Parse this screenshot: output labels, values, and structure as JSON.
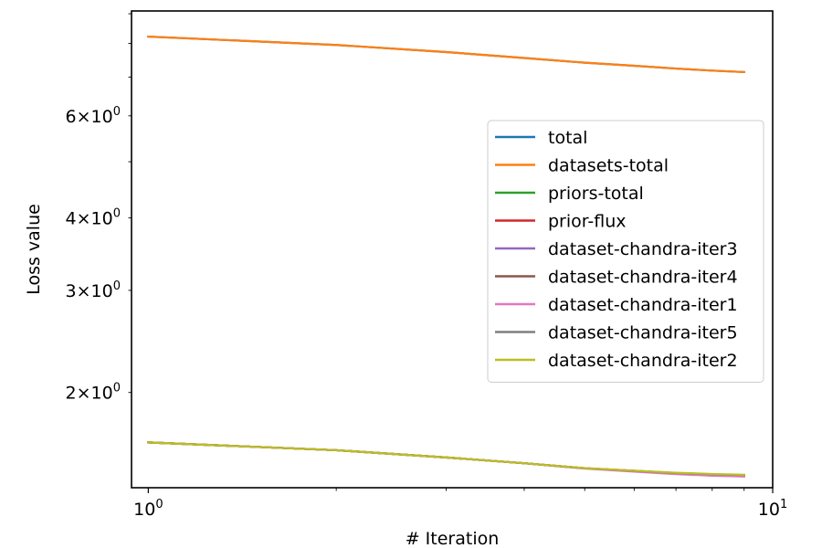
{
  "chart_data": {
    "type": "line",
    "x_scale": "log",
    "y_scale": "log",
    "xlabel": "# Iteration",
    "ylabel": "Loss value",
    "xlim": [
      0.94,
      10
    ],
    "ylim": [
      1.37,
      9.1
    ],
    "x_ticks": [
      {
        "value": 1,
        "base": "10",
        "exp": "0"
      },
      {
        "value": 10,
        "base": "10",
        "exp": "1"
      }
    ],
    "y_ticks": [
      {
        "value": 2,
        "coef": "2",
        "base": "10",
        "exp": "0"
      },
      {
        "value": 3,
        "coef": "3",
        "base": "10",
        "exp": "0"
      },
      {
        "value": 4,
        "coef": "4",
        "base": "10",
        "exp": "0"
      },
      {
        "value": 6,
        "coef": "6",
        "base": "10",
        "exp": "0"
      }
    ],
    "x": [
      1,
      2,
      3,
      4,
      5,
      6,
      7,
      8,
      9
    ],
    "series": [
      {
        "name": "total",
        "color": "#1f77b4",
        "values": [
          8.22,
          7.95,
          7.73,
          7.55,
          7.41,
          7.32,
          7.24,
          7.18,
          7.14
        ]
      },
      {
        "name": "datasets-total",
        "color": "#ff7f0e",
        "values": [
          8.22,
          7.95,
          7.73,
          7.55,
          7.41,
          7.32,
          7.24,
          7.18,
          7.14
        ]
      },
      {
        "name": "priors-total",
        "color": "#2ca02c",
        "values": [
          1.64,
          1.59,
          1.545,
          1.51,
          1.48,
          1.465,
          1.452,
          1.445,
          1.44
        ]
      },
      {
        "name": "prior-flux",
        "color": "#d62728",
        "values": [
          1.64,
          1.59,
          1.545,
          1.51,
          1.48,
          1.465,
          1.452,
          1.445,
          1.44
        ]
      },
      {
        "name": "dataset-chandra-iter3",
        "color": "#9467bd",
        "values": [
          1.64,
          1.59,
          1.545,
          1.51,
          1.48,
          1.463,
          1.449,
          1.44,
          1.435
        ]
      },
      {
        "name": "dataset-chandra-iter4",
        "color": "#8c564b",
        "values": [
          1.64,
          1.59,
          1.545,
          1.51,
          1.48,
          1.463,
          1.449,
          1.44,
          1.435
        ]
      },
      {
        "name": "dataset-chandra-iter1",
        "color": "#e377c2",
        "values": [
          1.64,
          1.59,
          1.545,
          1.51,
          1.478,
          1.46,
          1.446,
          1.437,
          1.432
        ]
      },
      {
        "name": "dataset-chandra-iter5",
        "color": "#7f7f7f",
        "values": [
          1.64,
          1.59,
          1.545,
          1.51,
          1.48,
          1.465,
          1.452,
          1.445,
          1.44
        ]
      },
      {
        "name": "dataset-chandra-iter2",
        "color": "#bcbd22",
        "values": [
          1.64,
          1.59,
          1.545,
          1.51,
          1.481,
          1.466,
          1.454,
          1.447,
          1.442
        ]
      }
    ],
    "grid": false,
    "legend_position": "center-right"
  }
}
